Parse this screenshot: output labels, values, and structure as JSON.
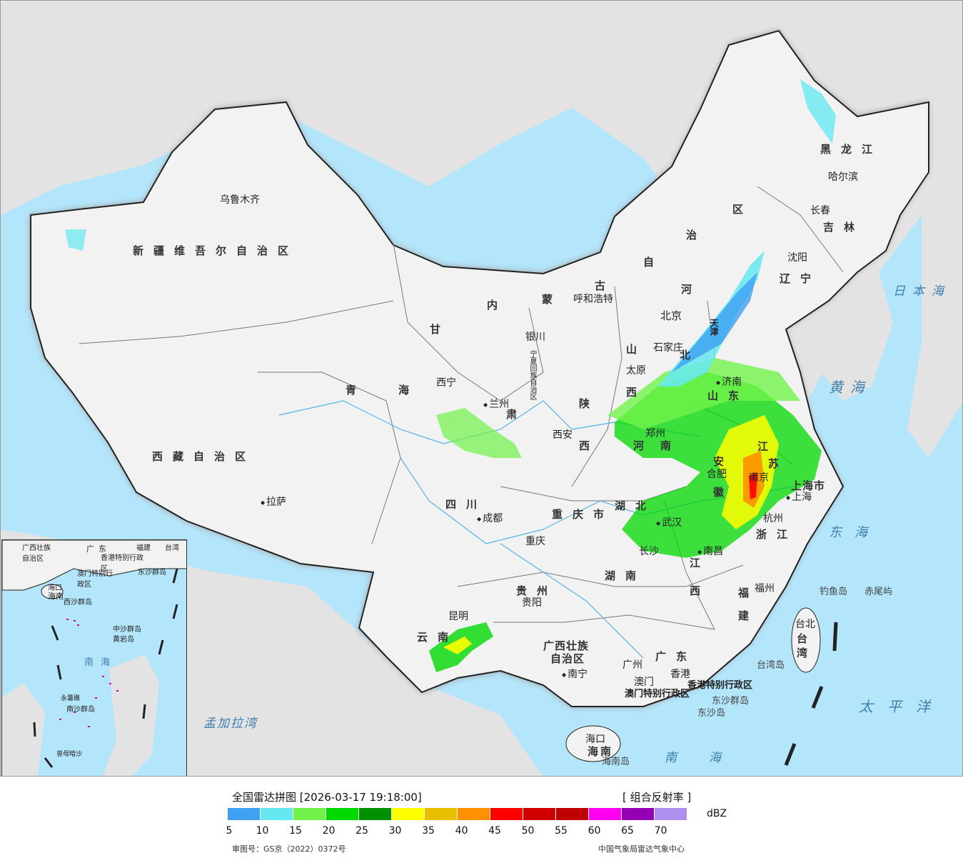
{
  "map": {
    "provinces": [
      {
        "id": "xinjiang",
        "name": "新疆维吾尔自治区"
      },
      {
        "id": "xizang",
        "name": "西藏自治区"
      },
      {
        "id": "qinghai1",
        "name": "青"
      },
      {
        "id": "qinghai2",
        "name": "海"
      },
      {
        "id": "gansu1",
        "name": "甘"
      },
      {
        "id": "gansu2",
        "name": "肃"
      },
      {
        "id": "neimeng1",
        "name": "内"
      },
      {
        "id": "neimeng2",
        "name": "蒙"
      },
      {
        "id": "neimeng3",
        "name": "古"
      },
      {
        "id": "neimeng4",
        "name": "自"
      },
      {
        "id": "neimeng5",
        "name": "治"
      },
      {
        "id": "neimeng6",
        "name": "区"
      },
      {
        "id": "heilongjiang",
        "name": "黑龙江"
      },
      {
        "id": "jilin",
        "name": "吉林"
      },
      {
        "id": "liaoning",
        "name": "辽宁"
      },
      {
        "id": "hebei1",
        "name": "河"
      },
      {
        "id": "hebei2",
        "name": "北"
      },
      {
        "id": "shanxi1",
        "name": "山"
      },
      {
        "id": "shanxi2",
        "name": "西"
      },
      {
        "id": "shaanxi1",
        "name": "陕"
      },
      {
        "id": "shaanxi2",
        "name": "西"
      },
      {
        "id": "shandong",
        "name": "山东"
      },
      {
        "id": "henan1",
        "name": "河"
      },
      {
        "id": "henan2",
        "name": "南"
      },
      {
        "id": "sichuan",
        "name": "四川"
      },
      {
        "id": "chongqing",
        "name": "重庆市"
      },
      {
        "id": "hubei",
        "name": "湖北"
      },
      {
        "id": "hunan",
        "name": "湖南"
      },
      {
        "id": "guizhou",
        "name": "贵州"
      },
      {
        "id": "yunnan",
        "name": "云南"
      },
      {
        "id": "guangxi1",
        "name": "广西壮族"
      },
      {
        "id": "guangxi2",
        "name": "自治区"
      },
      {
        "id": "guangdong",
        "name": "广东"
      },
      {
        "id": "jiangxi1",
        "name": "江"
      },
      {
        "id": "jiangxi2",
        "name": "西"
      },
      {
        "id": "fujian1",
        "name": "福"
      },
      {
        "id": "fujian2",
        "name": "建"
      },
      {
        "id": "zhejiang",
        "name": "浙江"
      },
      {
        "id": "jiangsu1",
        "name": "江"
      },
      {
        "id": "jiangsu2",
        "name": "苏"
      },
      {
        "id": "anhui",
        "name": "安徽"
      },
      {
        "id": "shanghai",
        "name": "上海市"
      },
      {
        "id": "taiwan1",
        "name": "台"
      },
      {
        "id": "taiwan2",
        "name": "湾"
      },
      {
        "id": "hainan1",
        "name": "海"
      },
      {
        "id": "hainan2",
        "name": "南"
      },
      {
        "id": "ningxia",
        "name": "宁夏回族自治区"
      },
      {
        "id": "tianjin",
        "name": "天津"
      },
      {
        "id": "hk",
        "name": "香港特别行政区"
      },
      {
        "id": "macau",
        "name": "澳门特别行政区"
      }
    ],
    "cities": [
      {
        "id": "urumqi",
        "name": "乌鲁木齐"
      },
      {
        "id": "lhasa",
        "name": "拉萨"
      },
      {
        "id": "xining",
        "name": "西宁"
      },
      {
        "id": "lanzhou",
        "name": "兰州"
      },
      {
        "id": "yinchuan",
        "name": "银川"
      },
      {
        "id": "hohhot",
        "name": "呼和浩特"
      },
      {
        "id": "beijing",
        "name": "北京"
      },
      {
        "id": "shijiazhuang",
        "name": "石家庄"
      },
      {
        "id": "taiyuan",
        "name": "太原"
      },
      {
        "id": "jinan",
        "name": "济南"
      },
      {
        "id": "zhengzhou",
        "name": "郑州"
      },
      {
        "id": "xian",
        "name": "西安"
      },
      {
        "id": "chengdu",
        "name": "成都"
      },
      {
        "id": "chongqing_c",
        "name": "重庆"
      },
      {
        "id": "wuhan",
        "name": "武汉"
      },
      {
        "id": "hefei",
        "name": "合肥"
      },
      {
        "id": "nanjing",
        "name": "南京"
      },
      {
        "id": "shanghai_c",
        "name": "上海"
      },
      {
        "id": "hangzhou",
        "name": "杭州"
      },
      {
        "id": "nanchang",
        "name": "南昌"
      },
      {
        "id": "changsha",
        "name": "长沙"
      },
      {
        "id": "guiyang",
        "name": "贵阳"
      },
      {
        "id": "kunming",
        "name": "昆明"
      },
      {
        "id": "nanning",
        "name": "南宁"
      },
      {
        "id": "guangzhou",
        "name": "广州"
      },
      {
        "id": "macau_c",
        "name": "澳门"
      },
      {
        "id": "hongkong_c",
        "name": "香港"
      },
      {
        "id": "fuzhou",
        "name": "福州"
      },
      {
        "id": "taipei",
        "name": "台北"
      },
      {
        "id": "haikou",
        "name": "海口"
      },
      {
        "id": "harbin",
        "name": "哈尔滨"
      },
      {
        "id": "changchun",
        "name": "长春"
      },
      {
        "id": "shenyang",
        "name": "沈阳"
      }
    ],
    "seas": [
      {
        "id": "japan_sea",
        "name": "日本海"
      },
      {
        "id": "yellow_sea",
        "name": "黄海"
      },
      {
        "id": "east_sea",
        "name": "东海"
      },
      {
        "id": "south_sea",
        "name": "南海"
      },
      {
        "id": "pacific",
        "name": "太平洋"
      },
      {
        "id": "bengal",
        "name": "孟加拉湾"
      }
    ],
    "islands": [
      {
        "id": "diaoyu",
        "name": "钓鱼岛"
      },
      {
        "id": "chiwei",
        "name": "赤尾屿"
      },
      {
        "id": "taiwan_island",
        "name": "台湾岛"
      },
      {
        "id": "dongsha_qd",
        "name": "东沙群岛"
      },
      {
        "id": "dongsha_d",
        "name": "东沙岛"
      },
      {
        "id": "hainan_island",
        "name": "海南岛"
      }
    ],
    "inset": {
      "labels": [
        "广西壮族自治区",
        "广东",
        "福建",
        "台湾",
        "香港特别行政区",
        "澳门特别行政区",
        "东沙群岛",
        "海口",
        "海南",
        "西沙群岛",
        "中沙群岛",
        "黄岩岛",
        "南海",
        "南沙群岛",
        "永暑礁",
        "曾母暗沙"
      ]
    }
  },
  "legend": {
    "title": "全国雷达拼图 [2026-03-17 19:18:00]",
    "product": "[ 组合反射率 ]",
    "unit": "dBZ",
    "ticks": [
      "5",
      "10",
      "15",
      "20",
      "25",
      "30",
      "35",
      "40",
      "45",
      "50",
      "55",
      "60",
      "65",
      "70"
    ],
    "colors": [
      "#3f9ff2",
      "#66e8f0",
      "#70f24a",
      "#00d800",
      "#009000",
      "#ffff00",
      "#e8c000",
      "#ff9000",
      "#ff0000",
      "#d00000",
      "#c00000",
      "#ff00f0",
      "#9600b4",
      "#ae90f0"
    ],
    "approval": "审图号：GS京（2022）0372号",
    "source": "中国气象局雷达气象中心"
  }
}
